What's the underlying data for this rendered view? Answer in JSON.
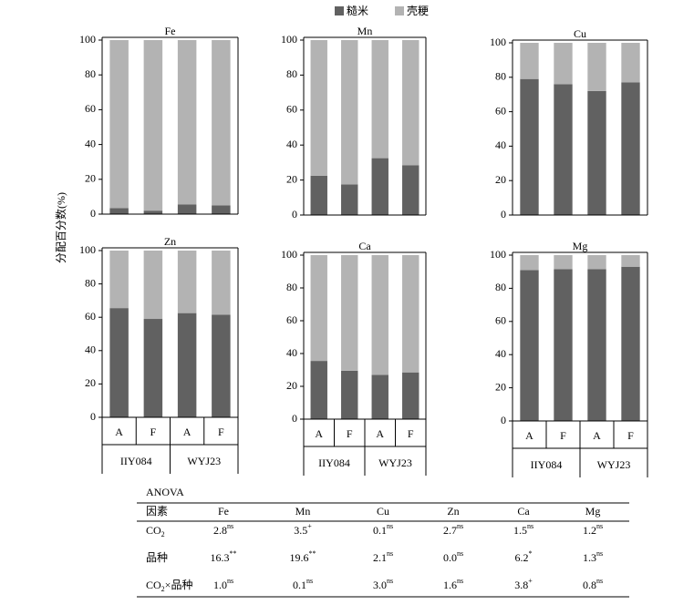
{
  "chart_data": {
    "type": "bar",
    "stacked": true,
    "ylabel": "分配百分数(%)",
    "series": [
      {
        "name": "糙米",
        "color": "#616161"
      },
      {
        "name": "壳粳",
        "color": "#b3b3b3"
      }
    ],
    "categories": [
      "A",
      "F",
      "A",
      "F"
    ],
    "groups": [
      "IIY084",
      "WYJ23"
    ],
    "ylim": [
      0,
      100
    ],
    "yticks": [
      0,
      20,
      40,
      60,
      80,
      100
    ],
    "panels": [
      {
        "title": "Fe",
        "series": [
          {
            "values": [
              3.5,
              2,
              5.5,
              5
            ]
          },
          {
            "values": [
              96.5,
              98,
              94.5,
              95
            ]
          }
        ]
      },
      {
        "title": "Mn",
        "series": [
          {
            "values": [
              22.5,
              17.5,
              32.5,
              28.5
            ]
          },
          {
            "values": [
              77.5,
              82.5,
              67.5,
              71.5
            ]
          }
        ]
      },
      {
        "title": "Cu",
        "series": [
          {
            "values": [
              79,
              76,
              72,
              77
            ]
          },
          {
            "values": [
              21,
              24,
              28,
              23
            ]
          }
        ]
      },
      {
        "title": "Zn",
        "series": [
          {
            "values": [
              65.5,
              59,
              62.5,
              61.5
            ]
          },
          {
            "values": [
              34.5,
              41,
              37.5,
              38.5
            ]
          }
        ]
      },
      {
        "title": "Ca",
        "series": [
          {
            "values": [
              35.5,
              29.5,
              27,
              28.5
            ]
          },
          {
            "values": [
              64.5,
              70.5,
              73,
              71.5
            ]
          }
        ]
      },
      {
        "title": "Mg",
        "series": [
          {
            "values": [
              91,
              91.5,
              91.5,
              93
            ]
          },
          {
            "values": [
              9,
              8.5,
              8.5,
              7
            ]
          }
        ]
      }
    ]
  },
  "table": {
    "title": "ANOVA",
    "header": [
      "因素",
      "Fe",
      "Mn",
      "Cu",
      "Zn",
      "Ca",
      "Mg"
    ],
    "rows": [
      {
        "label": {
          "main": "CO",
          "sub": "2"
        },
        "cells": [
          {
            "value": "2.8",
            "sig": "ns"
          },
          {
            "value": "3.5",
            "sig": "+"
          },
          {
            "value": "0.1",
            "sig": "ns"
          },
          {
            "value": "2.7",
            "sig": "ns"
          },
          {
            "value": "1.5",
            "sig": "ns"
          },
          {
            "value": "1.2",
            "sig": "ns"
          }
        ]
      },
      {
        "label": {
          "main": "品种"
        },
        "cells": [
          {
            "value": "16.3",
            "sig": "**"
          },
          {
            "value": "19.6",
            "sig": "**"
          },
          {
            "value": "2.1",
            "sig": "ns"
          },
          {
            "value": "0.0",
            "sig": "ns"
          },
          {
            "value": "6.2",
            "sig": "*"
          },
          {
            "value": "1.3",
            "sig": "ns"
          }
        ]
      },
      {
        "label": {
          "main": "CO",
          "sub": "2",
          "after": "×品种"
        },
        "cells": [
          {
            "value": "1.0",
            "sig": "ns"
          },
          {
            "value": "0.1",
            "sig": "ns"
          },
          {
            "value": "3.0",
            "sig": "ns"
          },
          {
            "value": "1.6",
            "sig": "ns"
          },
          {
            "value": "3.8",
            "sig": "+"
          },
          {
            "value": "0.8",
            "sig": "ns"
          }
        ]
      }
    ]
  }
}
